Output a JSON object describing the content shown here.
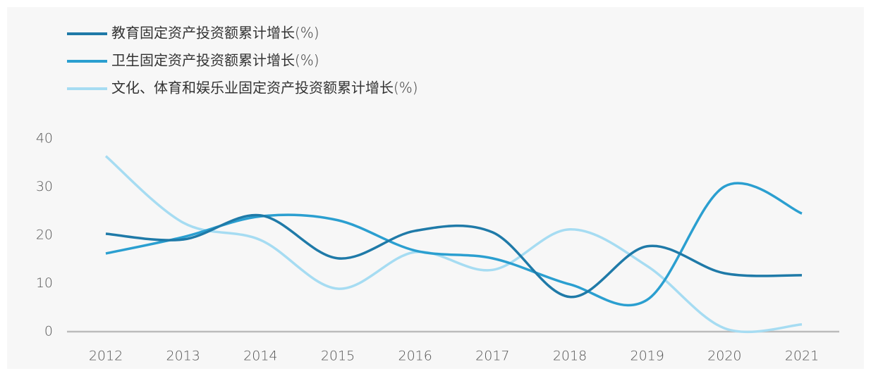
{
  "chart_data": {
    "type": "line",
    "categories": [
      "2012",
      "2013",
      "2014",
      "2015",
      "2016",
      "2017",
      "2018",
      "2019",
      "2020",
      "2021"
    ],
    "series": [
      {
        "name": "教育固定资产投资额累计增长(%)",
        "color": "#1f7aa8",
        "values": [
          20.3,
          19.1,
          24.1,
          15.2,
          20.9,
          20.6,
          7.2,
          17.7,
          12.1,
          11.7
        ]
      },
      {
        "name": "卫生固定资产投资额累计增长(%)",
        "color": "#2b9fd0",
        "values": [
          16.2,
          19.6,
          23.9,
          23.1,
          16.8,
          15.2,
          9.8,
          6.6,
          30.1,
          24.5
        ]
      },
      {
        "name": "文化、体育和娱乐业固定资产投资额累计增长(%)",
        "color": "#a6dcf2",
        "values": [
          36.4,
          22.6,
          19.0,
          8.9,
          16.5,
          12.8,
          21.2,
          13.6,
          0.7,
          1.5
        ]
      }
    ],
    "ylim": [
      0,
      40
    ],
    "yticks": [
      0,
      10,
      20,
      30,
      40
    ]
  }
}
